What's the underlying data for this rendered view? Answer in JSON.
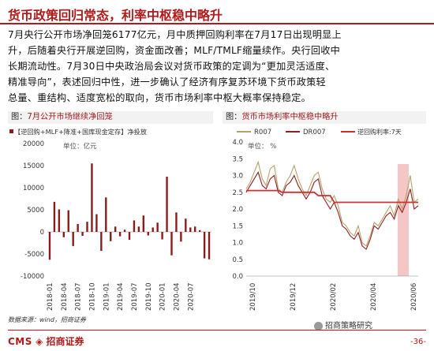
{
  "header": {
    "title": "货币政策回归常态，利率中枢稳中略升"
  },
  "body": {
    "lines": [
      "7月央行公开市场净回笼6177亿元，月中质押回购利率在7月17日出现明显上",
      "升，后随着央行开展逆回购，资金面改善；MLF/TMLF缩量续作。央行回收中",
      "长期流动性。7月30日中央政治局会议对货币政策的定调为“更加灵活适度、",
      "精准导向”，表述回归中性，进一步确认了经济有序复苏环境下货币政策轻",
      "总量、重结构、适度宽松的取向，货币市场利率中枢大概率保持稳定。"
    ]
  },
  "left_chart": {
    "label_prefix": "图：",
    "title": "7月公开市场继续净回笼",
    "legend": "【逆回购+MLF+降准+国库现金定存】净投放",
    "unit": "单位：亿元"
  },
  "right_chart": {
    "label_prefix": "图：",
    "title": "货币市场利率中枢稳中略升",
    "legend": [
      "R007",
      "DR007",
      "逆回购利率:7天"
    ],
    "unit": "单位： %"
  },
  "footer": {
    "source": "数据来源：wind，招商证券",
    "logo_cms": "CMS",
    "logo_name": "招商证券",
    "wechat": "招商策略研究",
    "page": "-36-"
  },
  "colors": {
    "brand": "#b01c1c",
    "bar": "#8b1a1a",
    "r007": "#b8a06a",
    "dr007": "#8b2020",
    "rev_repo": "#d03030",
    "highlight": "#f2b8b8"
  },
  "chart_data": [
    {
      "type": "bar",
      "title": "【逆回购+MLF+降准+国库现金定存】净投放",
      "ylabel": "单位：亿元",
      "ylim": [
        -10000,
        20000
      ],
      "yticks": [
        20000,
        15000,
        10000,
        5000,
        0,
        -5000,
        -10000
      ],
      "xticks": [
        "2018-01",
        "2018-04",
        "2018-07",
        "2018-10",
        "2019-01",
        "2019-04",
        "2019-07",
        "2019-10",
        "2020-01",
        "2020-04",
        "2020-07"
      ],
      "values": [
        -6300,
        6800,
        5100,
        -1200,
        4900,
        -3200,
        1800,
        -900,
        2300,
        15500,
        4000,
        -4300,
        7800,
        -2100,
        1200,
        -1000,
        500,
        -1800,
        2600,
        1200,
        3700,
        -800,
        1000,
        2100,
        -1700,
        12500,
        -5300,
        4400,
        -2200,
        3000,
        1000,
        1200,
        400,
        -6000,
        -6200
      ]
    },
    {
      "type": "line",
      "title": "货币市场利率中枢稳中略升",
      "ylabel": "单位： %",
      "ylim": [
        0,
        4
      ],
      "yticks": [
        4.0,
        3.5,
        3.0,
        2.5,
        2.0,
        1.5,
        1.0,
        0.5,
        0.0
      ],
      "xticks": [
        "2019/10",
        "2019/12",
        "2020/02",
        "2020/04",
        "2020/06"
      ],
      "series": [
        {
          "name": "R007",
          "values": [
            2.6,
            2.8,
            3.1,
            3.4,
            2.9,
            2.7,
            3.2,
            3.3,
            2.6,
            2.5,
            2.8,
            3.0,
            3.3,
            2.9,
            2.6,
            2.4,
            2.7,
            3.0,
            3.1,
            2.6,
            2.3,
            2.2,
            2.4,
            2.1,
            1.6,
            1.5,
            1.3,
            1.2,
            1.5,
            1.0,
            0.9,
            1.2,
            1.6,
            1.5,
            1.7,
            1.9,
            2.1,
            1.8,
            2.3,
            2.0,
            2.4,
            3.0,
            2.2,
            2.3
          ]
        },
        {
          "name": "DR007",
          "values": [
            2.5,
            2.7,
            2.9,
            3.1,
            2.7,
            2.6,
            2.9,
            3.0,
            2.5,
            2.4,
            2.7,
            2.8,
            3.0,
            2.7,
            2.5,
            2.3,
            2.5,
            2.8,
            2.9,
            2.4,
            2.2,
            2.0,
            2.2,
            1.9,
            1.5,
            1.4,
            1.2,
            1.1,
            1.3,
            0.9,
            0.8,
            1.1,
            1.5,
            1.4,
            1.6,
            1.8,
            1.9,
            1.7,
            2.1,
            1.9,
            2.2,
            2.6,
            2.0,
            2.1
          ]
        },
        {
          "name": "逆回购利率:7天",
          "values": [
            2.55,
            2.55,
            2.55,
            2.55,
            2.55,
            2.55,
            2.55,
            2.55,
            2.55,
            2.5,
            2.5,
            2.5,
            2.5,
            2.5,
            2.5,
            2.5,
            2.5,
            2.5,
            2.4,
            2.4,
            2.4,
            2.4,
            2.2,
            2.2,
            2.2,
            2.2,
            2.2,
            2.2,
            2.2,
            2.2,
            2.2,
            2.2,
            2.2,
            2.2,
            2.2,
            2.2,
            2.2,
            2.2,
            2.2,
            2.2,
            2.2,
            2.2,
            2.2,
            2.2
          ]
        }
      ],
      "highlight_range": "2020/06–2020/07"
    }
  ]
}
